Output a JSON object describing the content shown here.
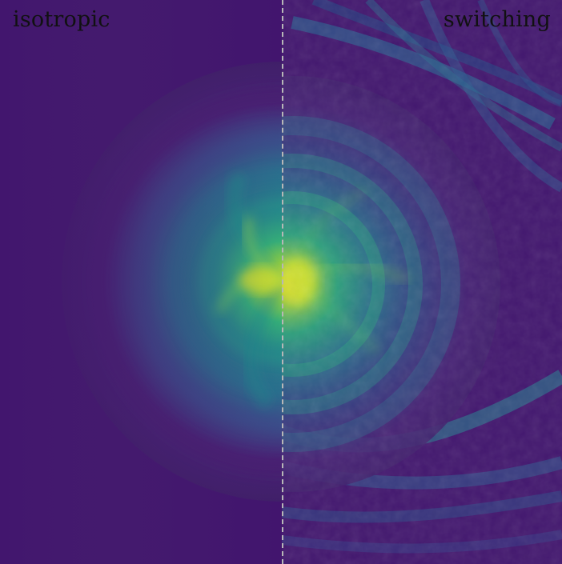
{
  "labels": {
    "left": "isotropic",
    "right": "switching"
  },
  "colors": {
    "background": "#3b0f70",
    "low": "#41156f",
    "mid_blue": "#2f5f93",
    "teal": "#1f8c8a",
    "green": "#51c56a",
    "yellow": "#f7e21e",
    "divider": "#b7b7b7",
    "text": "#111111"
  }
}
